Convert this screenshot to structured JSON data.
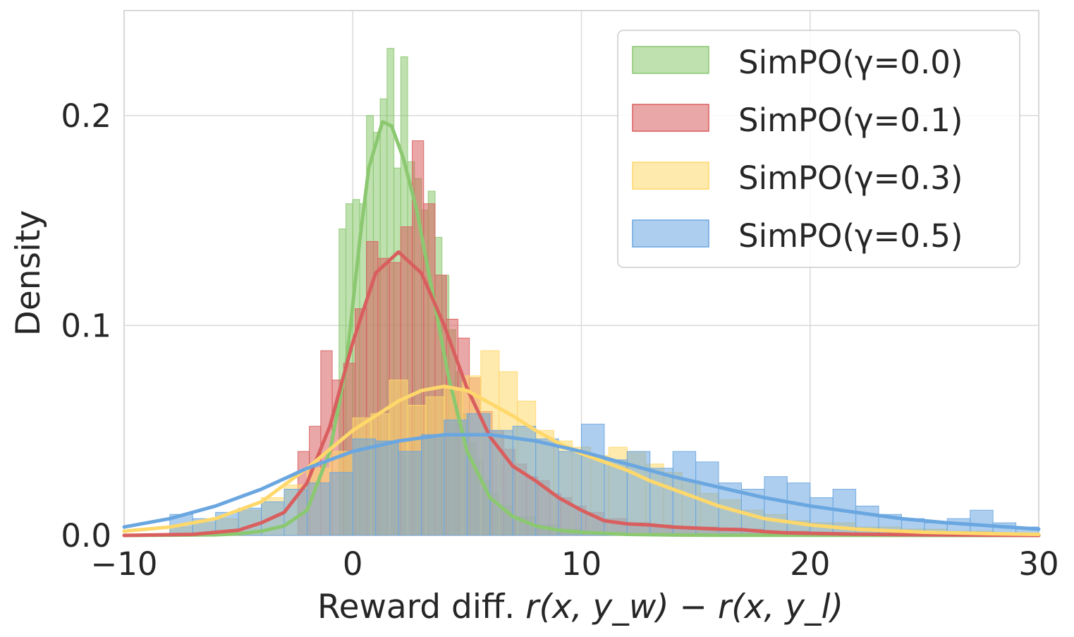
{
  "chart_data": {
    "type": "histogram",
    "xlim": [
      -10,
      30
    ],
    "ylim": [
      0,
      0.25
    ],
    "x_ticks": [
      -10,
      0,
      10,
      20,
      30
    ],
    "x_tick_labels": [
      "−10",
      "0",
      "10",
      "20",
      "30"
    ],
    "y_ticks": [
      0,
      0.1,
      0.2
    ],
    "y_tick_labels": [
      "0.0",
      "0.1",
      "0.2"
    ],
    "xlabel": "Reward diff.",
    "xlabel_math": "r(x, y_w) − r(x, y_l)",
    "ylabel": "Density",
    "grid": true,
    "legend_position": "top-right",
    "series": [
      {
        "name": "SimPO(γ=0.0)",
        "color": "#8bc870",
        "kde": [
          [
            -10,
            0
          ],
          [
            -6,
            0.0003
          ],
          [
            -5,
            0.0008
          ],
          [
            -4,
            0.002
          ],
          [
            -3,
            0.0045
          ],
          [
            -2,
            0.012
          ],
          [
            -1,
            0.04
          ],
          [
            -0.3,
            0.08
          ],
          [
            0,
            0.11
          ],
          [
            0.3,
            0.14
          ],
          [
            0.7,
            0.175
          ],
          [
            1.3,
            0.197
          ],
          [
            1.7,
            0.195
          ],
          [
            2.2,
            0.18
          ],
          [
            2.8,
            0.155
          ],
          [
            3.5,
            0.115
          ],
          [
            4.2,
            0.075
          ],
          [
            5,
            0.04
          ],
          [
            6,
            0.018
          ],
          [
            7,
            0.009
          ],
          [
            8,
            0.0045
          ],
          [
            9,
            0.0025
          ],
          [
            10,
            0.0015
          ],
          [
            12,
            0.0005
          ],
          [
            14,
            0.0002
          ],
          [
            16,
            0.0001
          ],
          [
            30,
            0
          ]
        ],
        "bins": [
          [
            -0.6,
            0.146
          ],
          [
            -0.3,
            0.158
          ],
          [
            0,
            0.16
          ],
          [
            0.3,
            0.158
          ],
          [
            0.6,
            0.2
          ],
          [
            0.9,
            0.192
          ],
          [
            1.2,
            0.208
          ],
          [
            1.5,
            0.232
          ],
          [
            1.8,
            0.175
          ],
          [
            2.1,
            0.228
          ],
          [
            2.4,
            0.178
          ],
          [
            2.7,
            0.17
          ],
          [
            3,
            0.155
          ],
          [
            3.3,
            0.164
          ],
          [
            3.6,
            0.142
          ],
          [
            3.9,
            0.124
          ],
          [
            4.2,
            0.098
          ],
          [
            4.5,
            0.078
          ],
          [
            4.8,
            0.058
          ],
          [
            5.1,
            0.044
          ],
          [
            5.4,
            0.036
          ],
          [
            5.7,
            0.026
          ],
          [
            6,
            0.02
          ],
          [
            6.4,
            0.014
          ],
          [
            7,
            0.009
          ],
          [
            8,
            0.005
          ],
          [
            9,
            0.003
          ]
        ]
      },
      {
        "name": "SimPO(γ=0.1)",
        "color": "#d95f5f",
        "kde": [
          [
            -10,
            0
          ],
          [
            -7,
            0.0005
          ],
          [
            -5,
            0.0025
          ],
          [
            -4,
            0.006
          ],
          [
            -3,
            0.011
          ],
          [
            -2,
            0.025
          ],
          [
            -1,
            0.052
          ],
          [
            0,
            0.092
          ],
          [
            1,
            0.125
          ],
          [
            2,
            0.135
          ],
          [
            3,
            0.125
          ],
          [
            4,
            0.1
          ],
          [
            5,
            0.07
          ],
          [
            6,
            0.047
          ],
          [
            7,
            0.033
          ],
          [
            8,
            0.026
          ],
          [
            9,
            0.018
          ],
          [
            10,
            0.012
          ],
          [
            11,
            0.007
          ],
          [
            12,
            0.0055
          ],
          [
            13,
            0.005
          ],
          [
            14,
            0.004
          ],
          [
            15,
            0.0035
          ],
          [
            16,
            0.003
          ],
          [
            17,
            0.0028
          ],
          [
            18,
            0.0018
          ],
          [
            19,
            0.0012
          ],
          [
            20,
            0.001
          ],
          [
            22,
            0.0006
          ],
          [
            25,
            0.0003
          ],
          [
            30,
            0
          ]
        ],
        "bins": [
          [
            -2.4,
            0.04
          ],
          [
            -1.9,
            0.052
          ],
          [
            -1.4,
            0.088
          ],
          [
            -0.9,
            0.074
          ],
          [
            -0.4,
            0.082
          ],
          [
            0.1,
            0.108
          ],
          [
            0.6,
            0.14
          ],
          [
            1.1,
            0.132
          ],
          [
            1.6,
            0.13
          ],
          [
            2.1,
            0.147
          ],
          [
            2.6,
            0.188
          ],
          [
            3.1,
            0.158
          ],
          [
            3.6,
            0.124
          ],
          [
            4.1,
            0.103
          ],
          [
            4.6,
            0.094
          ],
          [
            5.1,
            0.075
          ],
          [
            5.6,
            0.059
          ],
          [
            6.1,
            0.05
          ],
          [
            6.6,
            0.041
          ],
          [
            7.1,
            0.034
          ],
          [
            7.6,
            0.028
          ],
          [
            8.1,
            0.026
          ],
          [
            8.6,
            0.02
          ],
          [
            9.1,
            0.018
          ],
          [
            9.6,
            0.014
          ],
          [
            10.2,
            0.011
          ],
          [
            11,
            0.008
          ],
          [
            12,
            0.006
          ],
          [
            13,
            0.005
          ],
          [
            14,
            0.004
          ],
          [
            15,
            0.004
          ],
          [
            16,
            0.003
          ],
          [
            17,
            0.003
          ],
          [
            18,
            0.002
          ],
          [
            20,
            0.001
          ]
        ]
      },
      {
        "name": "SimPO(γ=0.3)",
        "color": "#ffd86b",
        "kde": [
          [
            -10,
            0.002
          ],
          [
            -8,
            0.004
          ],
          [
            -6,
            0.008
          ],
          [
            -4,
            0.016
          ],
          [
            -2,
            0.032
          ],
          [
            0,
            0.05
          ],
          [
            2,
            0.064
          ],
          [
            3,
            0.069
          ],
          [
            4,
            0.071
          ],
          [
            5,
            0.069
          ],
          [
            6,
            0.063
          ],
          [
            7,
            0.057
          ],
          [
            8,
            0.05
          ],
          [
            9,
            0.044
          ],
          [
            10,
            0.039
          ],
          [
            11,
            0.035
          ],
          [
            12,
            0.031
          ],
          [
            13,
            0.026
          ],
          [
            14,
            0.022
          ],
          [
            15,
            0.018
          ],
          [
            16,
            0.014
          ],
          [
            17,
            0.011
          ],
          [
            18,
            0.008
          ],
          [
            20,
            0.005
          ],
          [
            22,
            0.003
          ],
          [
            25,
            0.0015
          ],
          [
            28,
            0.0008
          ],
          [
            30,
            0.0005
          ]
        ],
        "bins": [
          [
            -8,
            0.004
          ],
          [
            -7,
            0.006
          ],
          [
            -6,
            0.008
          ],
          [
            -5,
            0.012
          ],
          [
            -4,
            0.018
          ],
          [
            -3,
            0.024
          ],
          [
            -2,
            0.032
          ],
          [
            -1,
            0.04
          ],
          [
            0,
            0.056
          ],
          [
            0.8,
            0.058
          ],
          [
            1.6,
            0.074
          ],
          [
            2.4,
            0.062
          ],
          [
            3.2,
            0.066
          ],
          [
            4,
            0.07
          ],
          [
            4.8,
            0.076
          ],
          [
            5.6,
            0.088
          ],
          [
            6.4,
            0.078
          ],
          [
            7.2,
            0.064
          ],
          [
            8,
            0.05
          ],
          [
            8.8,
            0.045
          ],
          [
            9.6,
            0.042
          ],
          [
            10.4,
            0.038
          ],
          [
            11.2,
            0.042
          ],
          [
            12,
            0.04
          ],
          [
            12.8,
            0.034
          ],
          [
            13.6,
            0.03
          ],
          [
            14.4,
            0.026
          ],
          [
            15.2,
            0.02
          ],
          [
            16,
            0.017
          ],
          [
            17,
            0.012
          ],
          [
            18,
            0.01
          ],
          [
            19,
            0.007
          ],
          [
            20,
            0.006
          ],
          [
            22,
            0.004
          ],
          [
            24,
            0.003
          ],
          [
            26,
            0.002
          ],
          [
            28,
            0.001
          ]
        ]
      },
      {
        "name": "SimPO(γ=0.5)",
        "color": "#6aa6e0",
        "kde": [
          [
            -10,
            0.004
          ],
          [
            -8,
            0.008
          ],
          [
            -6,
            0.014
          ],
          [
            -4,
            0.022
          ],
          [
            -2,
            0.032
          ],
          [
            0,
            0.04
          ],
          [
            2,
            0.045
          ],
          [
            4,
            0.048
          ],
          [
            6,
            0.048
          ],
          [
            8,
            0.045
          ],
          [
            10,
            0.04
          ],
          [
            12,
            0.034
          ],
          [
            14,
            0.028
          ],
          [
            16,
            0.023
          ],
          [
            18,
            0.018
          ],
          [
            20,
            0.014
          ],
          [
            22,
            0.011
          ],
          [
            24,
            0.008
          ],
          [
            26,
            0.006
          ],
          [
            28,
            0.0045
          ],
          [
            30,
            0.003
          ]
        ],
        "bins": [
          [
            -8,
            0.01
          ],
          [
            -7,
            0.008
          ],
          [
            -6,
            0.011
          ],
          [
            -5,
            0.013
          ],
          [
            -4,
            0.016
          ],
          [
            -3,
            0.022
          ],
          [
            -2,
            0.025
          ],
          [
            -1,
            0.03
          ],
          [
            0,
            0.046
          ],
          [
            1,
            0.045
          ],
          [
            2,
            0.04
          ],
          [
            3,
            0.048
          ],
          [
            4,
            0.055
          ],
          [
            5,
            0.058
          ],
          [
            6,
            0.05
          ],
          [
            7,
            0.052
          ],
          [
            8,
            0.046
          ],
          [
            9,
            0.04
          ],
          [
            10,
            0.053
          ],
          [
            11,
            0.036
          ],
          [
            12,
            0.04
          ],
          [
            13,
            0.032
          ],
          [
            14,
            0.04
          ],
          [
            15,
            0.035
          ],
          [
            16,
            0.025
          ],
          [
            17,
            0.022
          ],
          [
            18,
            0.028
          ],
          [
            19,
            0.025
          ],
          [
            20,
            0.018
          ],
          [
            21,
            0.022
          ],
          [
            22,
            0.014
          ],
          [
            23,
            0.01
          ],
          [
            24,
            0.008
          ],
          [
            25,
            0.006
          ],
          [
            26,
            0.008
          ],
          [
            27,
            0.012
          ],
          [
            28,
            0.006
          ],
          [
            29,
            0.004
          ]
        ]
      }
    ]
  }
}
